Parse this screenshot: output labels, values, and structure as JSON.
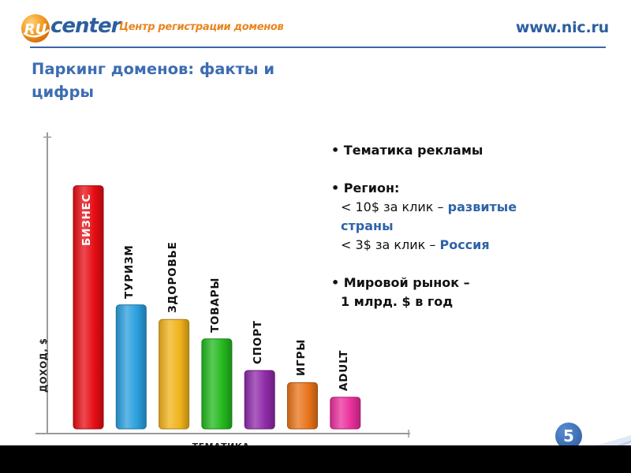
{
  "header": {
    "logo_ru": "RU",
    "logo_center": "center",
    "tagline": "Центр регистрации доменов",
    "site_url": "www.nic.ru"
  },
  "page_title": "Паркинг доменов: факты и цифры",
  "chart_data": {
    "type": "bar",
    "ylabel": "ДОХОД, $",
    "xlabel": "ТЕМАТИКА",
    "categories": [
      "БИЗНЕС",
      "ТУРИЗМ",
      "ЗДОРОВЬЕ",
      "ТОВАРЫ",
      "СПОРТ",
      "ИГРЫ",
      "ADULT"
    ],
    "values": [
      100,
      51,
      45,
      37,
      24,
      19,
      13
    ],
    "ylim": [
      0,
      120
    ],
    "colors": [
      "#e60d14",
      "#2a9fdd",
      "#f0b31a",
      "#23b81e",
      "#8e2aa8",
      "#e8741a",
      "#ea2f9c"
    ],
    "grid": false,
    "legend": "none"
  },
  "bullets": {
    "item1": "• Тематика рекламы",
    "item2": "• Регион:",
    "item2_line1_plain": "< 10$ за клик – ",
    "item2_line1_hl": "развитые",
    "item2_line2_hl": "страны",
    "item2_line3_plain": "< 3$ за клик – ",
    "item2_line3_hl": "Россия",
    "item3_line1": "• Мировой рынок –",
    "item3_line2": "1 млрд. $ в год"
  },
  "slide_number": "5",
  "colors": {
    "brand_blue": "#2d5f9f",
    "title_blue": "#3d6db2",
    "tagline_orange": "#e88620",
    "highlight_blue": "#2f63a8"
  }
}
